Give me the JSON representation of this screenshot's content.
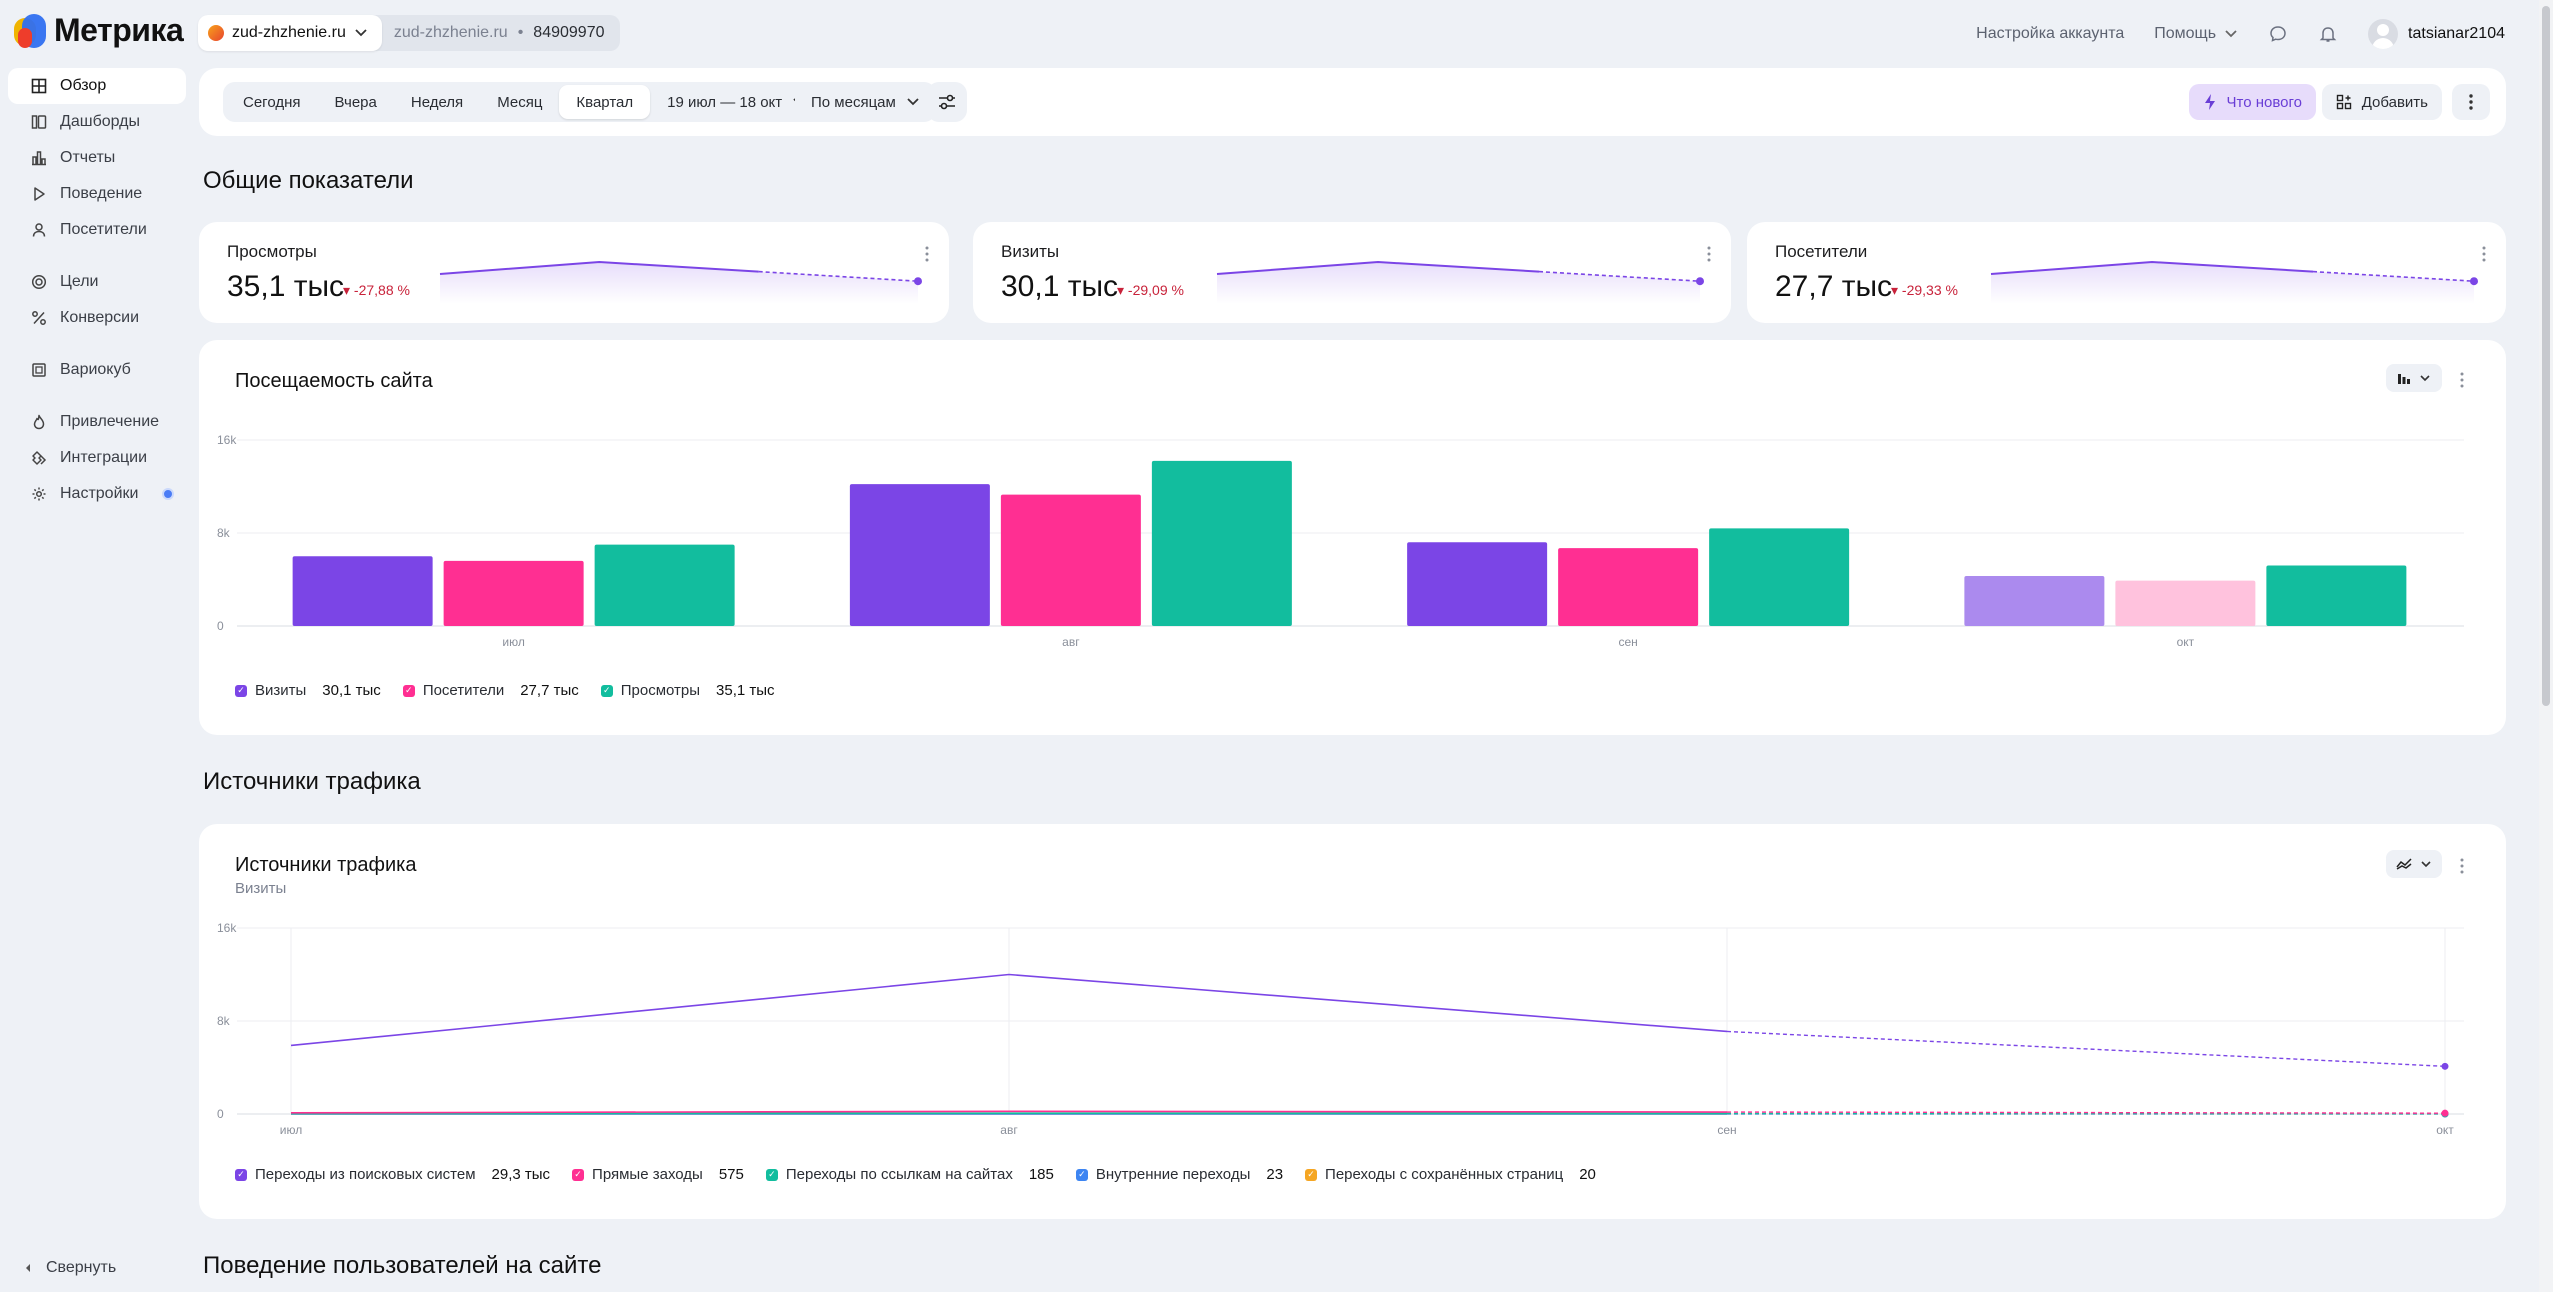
{
  "app": {
    "logo_text": "Метрика",
    "site_name": "zud-zhzhenie.ru",
    "site_domain": "zud-zhzhenie.ru",
    "counter_id": "84909970",
    "account_settings": "Настройка аккаунта",
    "help": "Помощь",
    "username": "tatsianar2104"
  },
  "sidebar": {
    "items": [
      {
        "label": "Обзор",
        "icon": "grid-icon",
        "active": true
      },
      {
        "label": "Дашборды",
        "icon": "dashboard-icon"
      },
      {
        "label": "Отчеты",
        "icon": "bar-chart-icon"
      },
      {
        "label": "Поведение",
        "icon": "play-icon"
      },
      {
        "label": "Посетители",
        "icon": "person-icon"
      },
      {
        "label": "Цели",
        "icon": "target-icon"
      },
      {
        "label": "Конверсии",
        "icon": "percent-icon"
      },
      {
        "label": "Вариокуб",
        "icon": "cube-icon"
      },
      {
        "label": "Привлечение",
        "icon": "flame-icon"
      },
      {
        "label": "Интеграции",
        "icon": "puzzle-icon"
      },
      {
        "label": "Настройки",
        "icon": "gear-icon"
      }
    ],
    "collapse": "Свернуть"
  },
  "filters": {
    "periods": [
      "Сегодня",
      "Вчера",
      "Неделя",
      "Месяц",
      "Квартал"
    ],
    "selected_period": "Квартал",
    "date_range": "19 июл — 18 окт",
    "group_by": "По месяцам",
    "whats_new": "Что нового",
    "add": "Добавить"
  },
  "sections": {
    "overview": "Общие показатели",
    "traffic": "Источники трафика",
    "behavior": "Поведение пользователей на сайте"
  },
  "kpis": [
    {
      "label": "Просмотры",
      "value": "35,1 тыс",
      "delta": "-27,88 %",
      "trend": [
        0.5,
        1.0,
        0.6,
        0.2
      ]
    },
    {
      "label": "Визиты",
      "value": "30,1 тыс",
      "delta": "-29,09 %",
      "trend": [
        0.5,
        1.0,
        0.6,
        0.2
      ]
    },
    {
      "label": "Посетители",
      "value": "27,7 тыс",
      "delta": "-29,33 %",
      "trend": [
        0.5,
        1.0,
        0.6,
        0.2
      ]
    }
  ],
  "attendance": {
    "title": "Посещаемость сайта",
    "legend": [
      {
        "name": "Визиты",
        "value": "30,1 тыс",
        "color": "#7b45e6"
      },
      {
        "name": "Посетители",
        "value": "27,7 тыс",
        "color": "#ff2f92"
      },
      {
        "name": "Просмотры",
        "value": "35,1 тыс",
        "color": "#12bd9e"
      }
    ]
  },
  "traffic_sources": {
    "title": "Источники трафика",
    "subtitle": "Визиты",
    "legend": [
      {
        "name": "Переходы из поисковых систем",
        "value": "29,3 тыс",
        "color": "#7b45e6"
      },
      {
        "name": "Прямые заходы",
        "value": "575",
        "color": "#ff2f92"
      },
      {
        "name": "Переходы по ссылкам на сайтах",
        "value": "185",
        "color": "#12bd9e"
      },
      {
        "name": "Внутренние переходы",
        "value": "23",
        "color": "#3d85f2"
      },
      {
        "name": "Переходы с сохранённых страниц",
        "value": "20",
        "color": "#f5a623"
      }
    ]
  },
  "chart_data": [
    {
      "type": "bar",
      "title": "Посещаемость сайта",
      "categories": [
        "июл",
        "авг",
        "сен",
        "окт"
      ],
      "ylim": [
        0,
        16000
      ],
      "yticks": [
        "0",
        "8k",
        "16k"
      ],
      "grid": true,
      "legend": "bottom-left",
      "series": [
        {
          "name": "Визиты",
          "values": [
            6000,
            12200,
            7200,
            4300
          ],
          "color": "#7b45e6",
          "partial_color": "#ab8aee"
        },
        {
          "name": "Посетители",
          "values": [
            5600,
            11300,
            6700,
            3900
          ],
          "color": "#ff2f92",
          "partial_color": "#ffc2dd"
        },
        {
          "name": "Просмотры",
          "values": [
            7000,
            14200,
            8400,
            5200
          ],
          "color": "#12bd9e",
          "partial_color": "#12bd9e"
        }
      ]
    },
    {
      "type": "line",
      "title": "Источники трафика",
      "categories": [
        "июл",
        "авг",
        "сен",
        "окт"
      ],
      "ylim": [
        0,
        16000
      ],
      "yticks": [
        "0",
        "8k",
        "16k"
      ],
      "grid": true,
      "legend": "bottom-left",
      "series": [
        {
          "name": "Переходы из поисковых систем",
          "values": [
            5900,
            12000,
            7100,
            4100
          ],
          "color": "#7b45e6"
        },
        {
          "name": "Прямые заходы",
          "values": [
            100,
            230,
            170,
            70
          ],
          "color": "#ff2f92"
        },
        {
          "name": "Переходы по ссылкам на сайтах",
          "values": [
            40,
            70,
            50,
            25
          ],
          "color": "#12bd9e"
        },
        {
          "name": "Внутренние переходы",
          "values": [
            5,
            9,
            6,
            3
          ],
          "color": "#3d85f2"
        },
        {
          "name": "Переходы с сохранённых страниц",
          "values": [
            5,
            7,
            5,
            3
          ],
          "color": "#f5a623"
        }
      ]
    }
  ]
}
